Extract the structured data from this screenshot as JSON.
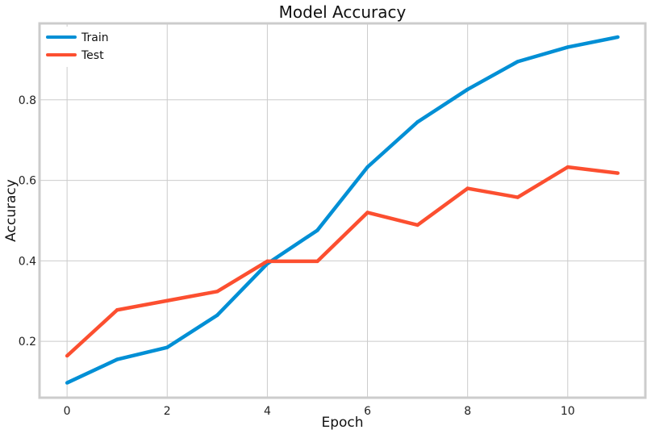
{
  "chart_data": {
    "type": "line",
    "title": "Model Accuracy",
    "xlabel": "Epoch",
    "ylabel": "Accuracy",
    "xlim": [
      -0.55,
      11.55
    ],
    "ylim": [
      0.06,
      0.99
    ],
    "x_ticks": [
      0,
      2,
      4,
      6,
      8,
      10
    ],
    "y_ticks": [
      0.2,
      0.4,
      0.6,
      0.8
    ],
    "grid": true,
    "legend_position": "top-left",
    "x": [
      0,
      1,
      2,
      3,
      4,
      5,
      6,
      7,
      8,
      9,
      10,
      11
    ],
    "series": [
      {
        "name": "Train",
        "color": "#008fd5",
        "values": [
          0.097,
          0.155,
          0.185,
          0.265,
          0.393,
          0.476,
          0.633,
          0.745,
          0.826,
          0.895,
          0.931,
          0.956
        ]
      },
      {
        "name": "Test",
        "color": "#fc4f30",
        "values": [
          0.164,
          0.278,
          0.301,
          0.324,
          0.399,
          0.399,
          0.52,
          0.489,
          0.58,
          0.558,
          0.633,
          0.618
        ]
      }
    ]
  }
}
